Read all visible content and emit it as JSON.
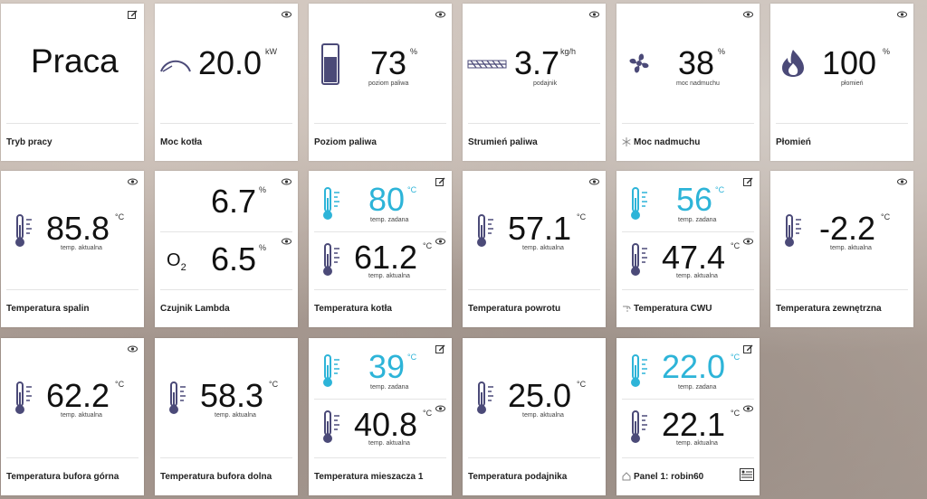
{
  "colors": {
    "accent": "#2db4d8",
    "icon": "#4b4a78"
  },
  "tiles": {
    "tryb_pracy": {
      "value": "Praca",
      "label": "Tryb pracy"
    },
    "moc_kotla": {
      "value": "20.0",
      "unit": "kW",
      "label": "Moc kotła"
    },
    "poziom_paliwa": {
      "value": "73",
      "unit": "%",
      "sub": "poziom paliwa",
      "label": "Poziom paliwa"
    },
    "strumien_paliwa": {
      "value": "3.7",
      "unit": "kg/h",
      "sub": "podajnik",
      "label": "Strumień paliwa"
    },
    "moc_nadmuchu": {
      "value": "38",
      "unit": "%",
      "sub": "moc nadmuchu",
      "label": "Moc nadmuchu"
    },
    "plomien": {
      "value": "100",
      "unit": "%",
      "sub": "płomień",
      "label": "Płomień"
    },
    "temp_spalin": {
      "value": "85.8",
      "unit": "°C",
      "sub": "temp. aktualna",
      "label": "Temperatura spalin"
    },
    "lambda": {
      "value1": "6.7",
      "unit1": "%",
      "value2": "6.5",
      "unit2": "%",
      "o2": "O",
      "o2sub": "2",
      "label": "Czujnik Lambda"
    },
    "temp_kotla": {
      "set": "80",
      "set_unit": "°C",
      "set_sub": "temp. zadana",
      "value": "61.2",
      "unit": "°C",
      "sub": "temp. aktualna",
      "label": "Temperatura kotła"
    },
    "temp_powrotu": {
      "value": "57.1",
      "unit": "°C",
      "sub": "temp. aktualna",
      "label": "Temperatura powrotu"
    },
    "temp_cwu": {
      "set": "56",
      "set_unit": "°C",
      "set_sub": "temp. zadana",
      "value": "47.4",
      "unit": "°C",
      "sub": "temp. aktualna",
      "label": "Temperatura CWU"
    },
    "temp_zewn": {
      "value": "-2.2",
      "unit": "°C",
      "sub": "temp. aktualna",
      "label": "Temperatura zewnętrzna"
    },
    "bufor_gorna": {
      "value": "62.2",
      "unit": "°C",
      "sub": "temp. aktualna",
      "label": "Temperatura bufora górna"
    },
    "bufor_dolna": {
      "value": "58.3",
      "unit": "°C",
      "sub": "temp. aktualna",
      "label": "Temperatura bufora dolna"
    },
    "mieszacz1": {
      "set": "39",
      "set_unit": "°C",
      "set_sub": "temp. zadana",
      "value": "40.8",
      "unit": "°C",
      "sub": "temp. aktualna",
      "label": "Temperatura mieszacza 1"
    },
    "podajnik": {
      "value": "25.0",
      "unit": "°C",
      "sub": "temp. aktualna",
      "label": "Temperatura podajnika"
    },
    "panel1": {
      "set": "22.0",
      "set_unit": "°C",
      "set_sub": "temp. zadana",
      "value": "22.1",
      "unit": "°C",
      "sub": "temp. aktualna",
      "label": "Panel 1: robin60"
    }
  }
}
